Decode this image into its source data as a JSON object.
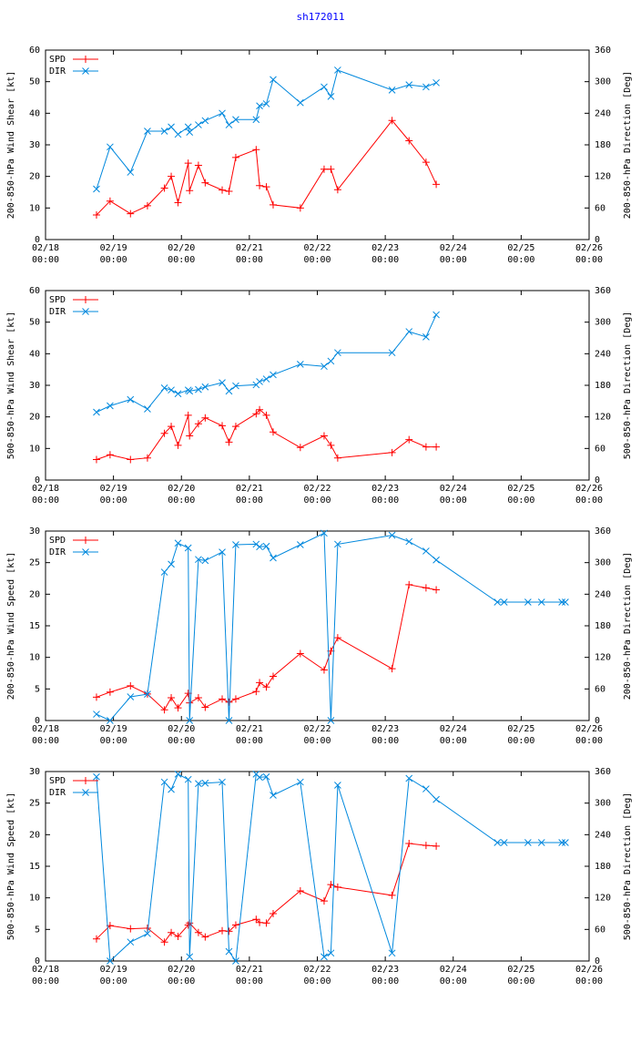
{
  "title": "sh172011",
  "colors": {
    "spd": "#ff0000",
    "dir": "#0088dd",
    "axis": "#000000"
  },
  "x_ticks": [
    {
      "date": "02/18",
      "time": "00:00",
      "day": 0
    },
    {
      "date": "02/19",
      "time": "00:00",
      "day": 1
    },
    {
      "date": "02/20",
      "time": "00:00",
      "day": 2
    },
    {
      "date": "02/21",
      "time": "00:00",
      "day": 3
    },
    {
      "date": "02/22",
      "time": "00:00",
      "day": 4
    },
    {
      "date": "02/23",
      "time": "00:00",
      "day": 5
    },
    {
      "date": "02/24",
      "time": "00:00",
      "day": 6
    },
    {
      "date": "02/25",
      "time": "00:00",
      "day": 7
    },
    {
      "date": "02/26",
      "time": "00:00",
      "day": 8
    }
  ],
  "chart_data": [
    {
      "type": "line",
      "ylabel": "200-850-hPa Wind Shear [kt]",
      "y2label": "200-850-hPa Direction [Deg]",
      "ylim": [
        0,
        60
      ],
      "yticks": [
        0,
        10,
        20,
        30,
        40,
        50,
        60
      ],
      "y2lim": [
        0,
        360
      ],
      "y2ticks": [
        0,
        60,
        120,
        180,
        240,
        300,
        360
      ],
      "xlim": [
        0,
        8
      ],
      "legend": [
        "SPD",
        "DIR"
      ],
      "series": [
        {
          "name": "SPD",
          "axis": "left",
          "x": [
            0.75,
            0.95,
            1.25,
            1.5,
            1.75,
            1.85,
            1.95,
            2.1,
            2.12,
            2.25,
            2.35,
            2.6,
            2.7,
            2.8,
            3.1,
            3.15,
            3.25,
            3.35,
            3.75,
            4.1,
            4.2,
            4.3,
            5.1,
            5.35,
            5.6,
            5.75
          ],
          "y": [
            7.8,
            12.2,
            8.2,
            10.7,
            16.3,
            20,
            11.7,
            24.2,
            15.5,
            23.5,
            18,
            15.7,
            15.3,
            26,
            28.5,
            17.1,
            16.7,
            11,
            10,
            22.3,
            22.3,
            15.8,
            37.7,
            31.3,
            24.5,
            17.5
          ]
        },
        {
          "name": "DIR",
          "axis": "right",
          "x": [
            0.75,
            0.95,
            1.25,
            1.5,
            1.75,
            1.85,
            1.95,
            2.1,
            2.12,
            2.25,
            2.35,
            2.6,
            2.7,
            2.8,
            3.1,
            3.15,
            3.25,
            3.35,
            3.75,
            4.1,
            4.2,
            4.3,
            5.1,
            5.35,
            5.6,
            5.75
          ],
          "y": [
            96,
            176,
            128,
            206,
            206,
            214,
            200,
            214,
            204,
            218,
            226,
            240,
            218,
            228,
            228,
            254,
            258,
            304,
            260,
            290,
            272,
            322,
            284,
            294,
            290,
            298
          ]
        }
      ]
    },
    {
      "type": "line",
      "ylabel": "500-850-hPa Wind Shear [kt]",
      "y2label": "500-850-hPa Direction [Deg]",
      "ylim": [
        0,
        60
      ],
      "yticks": [
        0,
        10,
        20,
        30,
        40,
        50,
        60
      ],
      "y2lim": [
        0,
        360
      ],
      "y2ticks": [
        0,
        60,
        120,
        180,
        240,
        300,
        360
      ],
      "xlim": [
        0,
        8
      ],
      "legend": [
        "SPD",
        "DIR"
      ],
      "series": [
        {
          "name": "SPD",
          "axis": "left",
          "x": [
            0.75,
            0.95,
            1.25,
            1.5,
            1.75,
            1.85,
            1.95,
            2.1,
            2.12,
            2.25,
            2.35,
            2.6,
            2.7,
            2.8,
            3.1,
            3.15,
            3.25,
            3.35,
            3.75,
            4.1,
            4.2,
            4.3,
            5.1,
            5.35,
            5.6,
            5.75
          ],
          "y": [
            6.5,
            8,
            6.5,
            7,
            14.8,
            17,
            11,
            20.5,
            14,
            17.8,
            19.7,
            17.2,
            12,
            17,
            21,
            22.3,
            20.5,
            15.2,
            10.3,
            14,
            11,
            7,
            8.7,
            12.8,
            10.5,
            10.5
          ]
        },
        {
          "name": "DIR",
          "axis": "right",
          "x": [
            0.75,
            0.95,
            1.25,
            1.5,
            1.75,
            1.85,
            1.95,
            2.1,
            2.12,
            2.25,
            2.35,
            2.6,
            2.7,
            2.8,
            3.1,
            3.15,
            3.25,
            3.35,
            3.75,
            4.1,
            4.2,
            4.3,
            5.1,
            5.35,
            5.6,
            5.75
          ],
          "y": [
            129,
            141,
            153,
            135,
            175,
            171,
            164,
            171,
            169,
            172,
            177,
            185,
            169,
            179,
            181,
            187,
            192,
            200,
            220,
            216,
            226,
            242,
            242,
            282,
            272,
            314
          ]
        }
      ]
    },
    {
      "type": "line",
      "ylabel": "200-850-hPa Wind Speed [kt]",
      "y2label": "200-850-hPa Direction [Deg]",
      "ylim": [
        0,
        30
      ],
      "yticks": [
        0,
        5,
        10,
        15,
        20,
        25,
        30
      ],
      "y2lim": [
        0,
        360
      ],
      "y2ticks": [
        0,
        60,
        120,
        180,
        240,
        300,
        360
      ],
      "xlim": [
        0,
        8
      ],
      "legend": [
        "SPD",
        "DIR"
      ],
      "series": [
        {
          "name": "SPD",
          "axis": "left",
          "x": [
            0.75,
            0.95,
            1.25,
            1.5,
            1.75,
            1.85,
            1.95,
            2.1,
            2.12,
            2.25,
            2.35,
            2.6,
            2.7,
            2.8,
            3.1,
            3.15,
            3.25,
            3.35,
            3.75,
            4.1,
            4.2,
            4.3,
            5.1,
            5.35,
            5.6,
            5.75
          ],
          "y": [
            3.7,
            4.5,
            5.5,
            4.2,
            1.7,
            3.6,
            2,
            4.3,
            2.8,
            3.6,
            2.1,
            3.4,
            2.9,
            3.4,
            4.6,
            6,
            5.3,
            7,
            10.6,
            8,
            11,
            13.1,
            8.2,
            21.5,
            21,
            20.7
          ]
        },
        {
          "name": "DIR",
          "axis": "right",
          "x": [
            0.75,
            0.95,
            1.25,
            1.5,
            1.75,
            1.85,
            1.95,
            2.1,
            2.12,
            2.25,
            2.35,
            2.6,
            2.7,
            2.8,
            3.1,
            3.15,
            3.25,
            3.35,
            3.75,
            4.1,
            4.2,
            4.3,
            5.1,
            5.35,
            5.6,
            5.75,
            6.65,
            6.75,
            7.1,
            7.3,
            7.6,
            7.65
          ],
          "y": [
            12,
            0,
            45,
            50,
            282,
            297,
            337,
            328,
            0,
            306,
            304,
            320,
            0,
            334,
            335,
            330,
            331,
            309,
            334,
            356,
            0,
            335,
            352,
            340,
            322,
            305,
            225,
            225,
            225,
            225,
            225,
            225
          ]
        }
      ]
    },
    {
      "type": "line",
      "ylabel": "500-850-hPa Wind Speed [kt]",
      "y2label": "500-850-hPa Direction [Deg]",
      "ylim": [
        0,
        30
      ],
      "yticks": [
        0,
        5,
        10,
        15,
        20,
        25,
        30
      ],
      "y2lim": [
        0,
        360
      ],
      "y2ticks": [
        0,
        60,
        120,
        180,
        240,
        300,
        360
      ],
      "xlim": [
        0,
        8
      ],
      "legend": [
        "SPD",
        "DIR"
      ],
      "series": [
        {
          "name": "SPD",
          "axis": "left",
          "x": [
            0.75,
            0.95,
            1.25,
            1.5,
            1.75,
            1.85,
            1.95,
            2.1,
            2.12,
            2.25,
            2.35,
            2.6,
            2.7,
            2.8,
            3.1,
            3.15,
            3.25,
            3.35,
            3.75,
            4.1,
            4.2,
            4.3,
            5.1,
            5.35,
            5.6,
            5.75
          ],
          "y": [
            3.5,
            5.6,
            5.1,
            5.2,
            3,
            4.5,
            3.9,
            5.7,
            6,
            4.5,
            3.8,
            4.8,
            4.7,
            5.7,
            6.6,
            6.1,
            6,
            7.5,
            11.1,
            9.5,
            12.1,
            11.7,
            10.4,
            18.6,
            18.3,
            18.2
          ]
        },
        {
          "name": "DIR",
          "axis": "right",
          "x": [
            0.75,
            0.95,
            1.25,
            1.5,
            1.75,
            1.85,
            1.95,
            2.1,
            2.12,
            2.25,
            2.35,
            2.6,
            2.7,
            2.8,
            3.1,
            3.15,
            3.25,
            3.35,
            3.75,
            4.1,
            4.2,
            4.3,
            5.1,
            5.35,
            5.6,
            5.75,
            6.65,
            6.75,
            7.1,
            7.3,
            7.6,
            7.65
          ],
          "y": [
            350,
            0,
            36,
            52,
            340,
            326,
            355,
            345,
            8,
            337,
            338,
            340,
            18,
            0,
            355,
            349,
            350,
            315,
            340,
            8,
            15,
            334,
            15,
            347,
            327,
            307,
            225,
            225,
            225,
            225,
            225,
            225
          ]
        }
      ]
    }
  ]
}
